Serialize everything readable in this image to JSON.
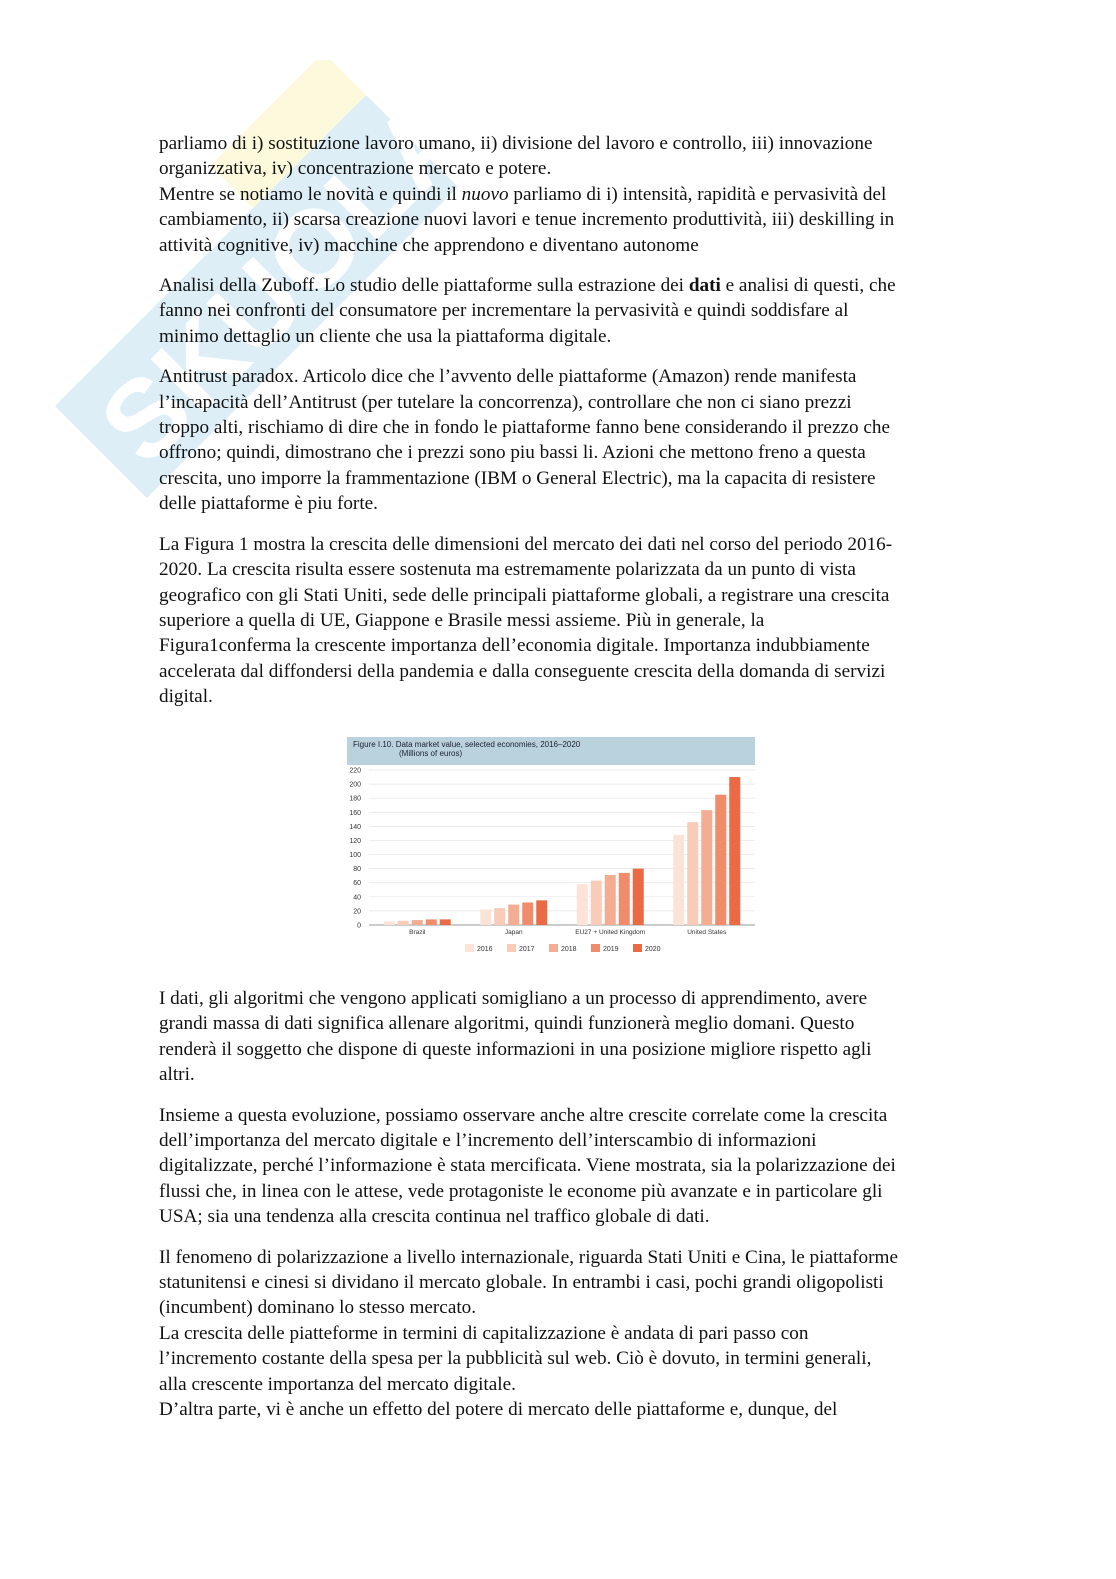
{
  "watermark": {
    "logo_text": "Skuola.net"
  },
  "top_paragraphs": [
    {
      "lines": [
        "parliamo di i) sostituzione lavoro umano, ii) divisione del lavoro e controllo, iii) innovazione",
        "organizzativa, iv) concentrazione mercato e potere."
      ]
    },
    {
      "lines_rich": true,
      "l1a": "Mentre se notiamo le novità e quindi il ",
      "l1i": "nuovo",
      "l1b": " parliamo di i) intensità, rapidità e pervasività del",
      "l2": "cambiamento, ii) scarsa creazione nuovi lavori e tenue incremento produttività, iii) deskilling in",
      "l3": "attività cognitive, iv) macchine che apprendono e diventano autonome"
    },
    {
      "l1a": "Analisi della Zuboff. Lo studio delle piattaforme sulla estrazione dei ",
      "l1b": "dati",
      "l1c": " e analisi di questi, che",
      "l2": "fanno nei confronti del consumatore per incrementare la pervasività e quindi soddisfare al",
      "l3": "minimo dettaglio un cliente che usa la piattaforma digitale."
    },
    {
      "lines": [
        "Antitrust paradox. Articolo dice che l’avvento delle piattaforme (Amazon) rende manifesta",
        "l’incapacità dell’Antitrust (per tutelare la concorrenza), controllare che non ci siano prezzi",
        "troppo alti, rischiamo di dire che in fondo le piattaforme fanno bene considerando il prezzo che",
        "offrono; quindi, dimostrano che i prezzi sono piu bassi li. Azioni che mettono freno a questa",
        "crescita, uno imporre la frammentazione (IBM o General Electric), ma la capacita di resistere",
        "delle piattaforme è piu forte."
      ]
    },
    {
      "lines": [
        "La Figura 1 mostra la crescita delle dimensioni del mercato dei dati nel corso del periodo 2016-",
        "2020. La crescita risulta essere sostenuta ma estremamente polarizzata da un punto di vista",
        "geografico con gli Stati Uniti, sede delle principali piattaforme globali, a registrare una crescita",
        "superiore a quella di UE, Giappone e Brasile messi assieme. Più in generale, la",
        "Figura1conferma la crescente importanza dell’economia digitale. Importanza indubbiamente",
        "accelerata dal diffondersi della pandemia e dalla conseguente crescita della domanda di servizi",
        "digital."
      ]
    }
  ],
  "chart_data": {
    "type": "bar",
    "title": "Figure I.10. Data market value, selected economies, 2016–2020",
    "subtitle": "(Millions of euros)",
    "categories": [
      "Brazil",
      "Japan",
      "EU27 + United Kingdom",
      "United States"
    ],
    "series": [
      {
        "name": "2016",
        "values": [
          5,
          22,
          58,
          128
        ],
        "color": "#fbe3d8"
      },
      {
        "name": "2017",
        "values": [
          6,
          24,
          63,
          146
        ],
        "color": "#f8ccb8"
      },
      {
        "name": "2018",
        "values": [
          7,
          29,
          71,
          163
        ],
        "color": "#f4ad92"
      },
      {
        "name": "2019",
        "values": [
          8,
          32,
          74,
          185
        ],
        "color": "#f08c6c"
      },
      {
        "name": "2020",
        "values": [
          8,
          35,
          80,
          210
        ],
        "color": "#ea6a45"
      }
    ],
    "yticks": [
      "0",
      "20",
      "40",
      "60",
      "80",
      "100",
      "120",
      "140",
      "160",
      "180",
      "200",
      "220"
    ],
    "ylim": [
      0,
      220
    ],
    "grid": true,
    "legend_position": "bottom"
  },
  "bottom_paragraphs": [
    {
      "lines": [
        "I dati, gli algoritmi che vengono applicati somigliano a un processo di apprendimento, avere",
        "grandi massa di dati significa allenare algoritmi, quindi funzionerà meglio domani. Questo",
        "renderà il soggetto che dispone di queste informazioni in una posizione migliore rispetto agli",
        "altri."
      ]
    },
    {
      "lines": [
        "Insieme a questa evoluzione, possiamo osservare anche altre crescite correlate come la crescita",
        "dell’importanza del mercato digitale e l’incremento dell’interscambio di informazioni",
        "digitalizzate, perché l’informazione è stata mercificata. Viene mostrata, sia la polarizzazione dei",
        "flussi che, in linea con le attese, vede protagoniste le econome più avanzate e in particolare gli",
        "USA; sia una tendenza alla crescita continua nel traffico globale di dati."
      ]
    },
    {
      "lines": [
        "Il fenomeno di polarizzazione a livello internazionale, riguarda Stati Uniti e Cina, le piattaforme",
        "statunitensi e cinesi si dividano il mercato globale. In entrambi i casi, pochi grandi oligopolisti",
        "(incumbent) dominano lo stesso mercato.",
        "La crescita delle piatteforme in termini di capitalizzazione è andata di pari passo con",
        "l’incremento costante della spesa per la pubblicità sul web. Ciò è dovuto, in termini generali,",
        "alla crescente importanza del mercato digitale.",
        "D’altra parte, vi è anche un effetto del potere di mercato delle piattaforme e, dunque, del"
      ]
    }
  ]
}
